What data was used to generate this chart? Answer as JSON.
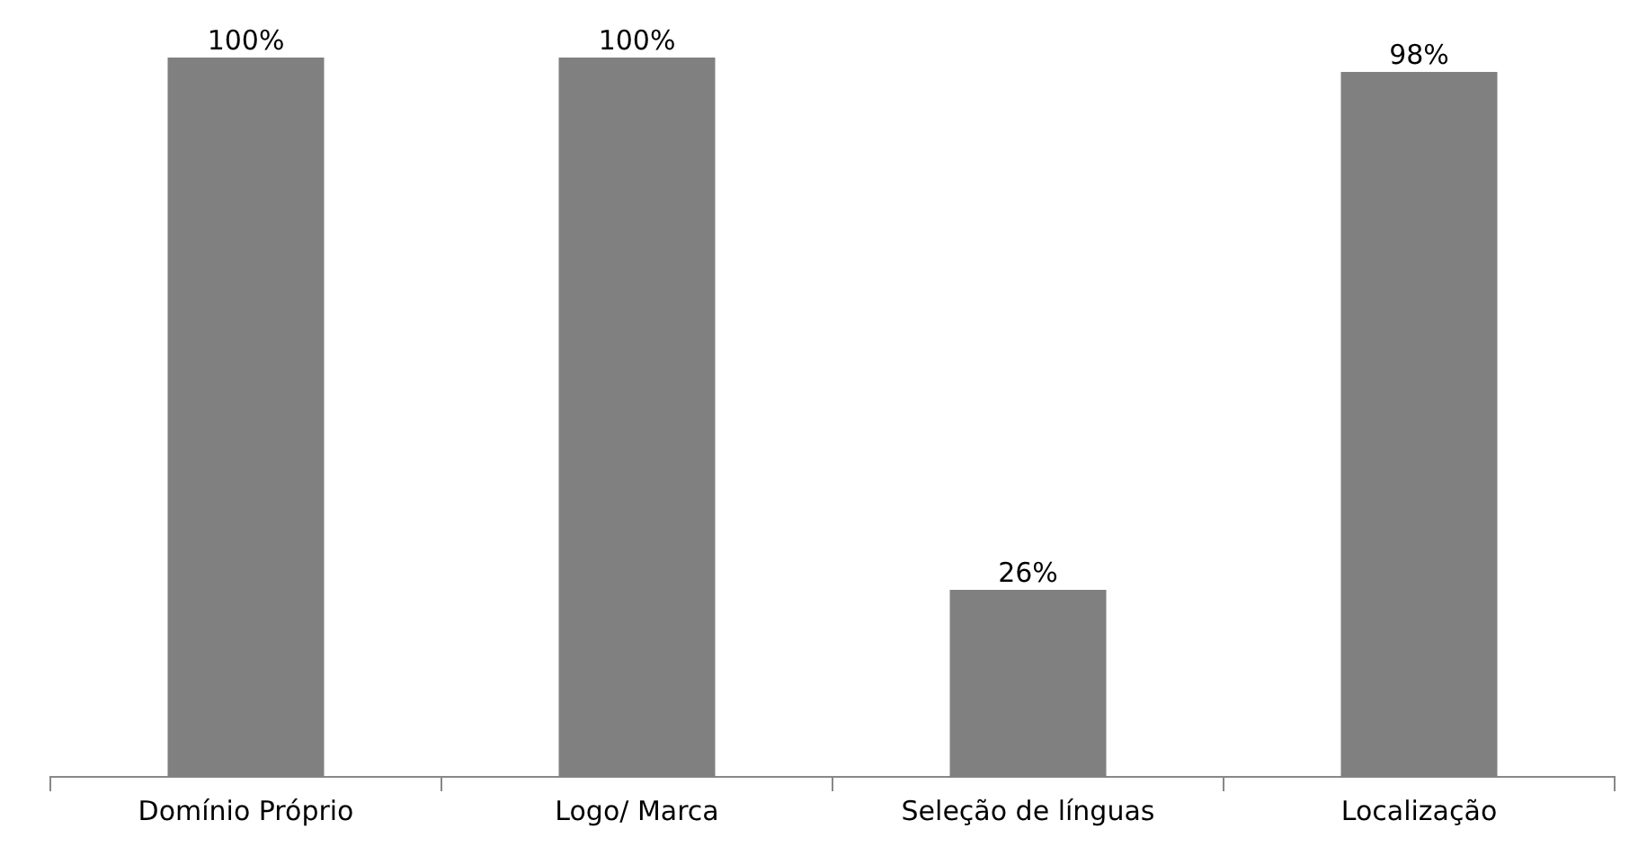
{
  "chart_data": {
    "type": "bar",
    "categories": [
      "Domínio Próprio",
      "Logo/ Marca",
      "Seleção de línguas",
      "Localização"
    ],
    "values": [
      100,
      100,
      26,
      98
    ],
    "value_labels": [
      "100%",
      "100%",
      "26%",
      "98%"
    ],
    "color": "#808080",
    "grid": false,
    "legend": false
  }
}
